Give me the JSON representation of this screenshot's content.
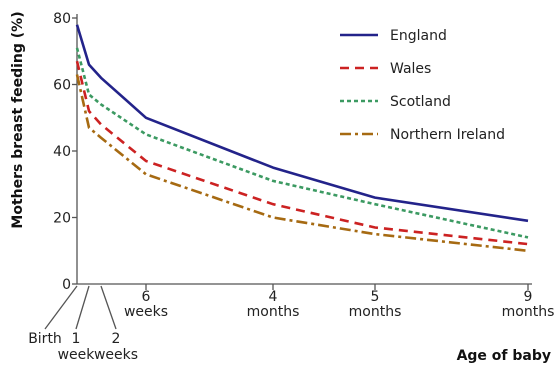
{
  "chart_data": {
    "type": "line",
    "title": "",
    "xlabel": "Age of baby",
    "ylabel": "Mothers breast feeding (%)",
    "ylim": [
      0,
      80
    ],
    "yticks": [
      "0",
      "20",
      "40",
      "60",
      "80"
    ],
    "x_ticks": [
      {
        "id": "birth",
        "lines": [
          "Birth"
        ]
      },
      {
        "id": "1w",
        "lines": [
          "1",
          "week"
        ]
      },
      {
        "id": "2w",
        "lines": [
          "2",
          "weeks"
        ]
      },
      {
        "id": "6w",
        "lines": [
          "6",
          "weeks"
        ]
      },
      {
        "id": "4m",
        "lines": [
          "4",
          "months"
        ]
      },
      {
        "id": "5m",
        "lines": [
          "5",
          "months"
        ]
      },
      {
        "id": "9m",
        "lines": [
          "9",
          "months"
        ]
      }
    ],
    "x_weeks": [
      0,
      1,
      2,
      6,
      17.4,
      21.7,
      39
    ],
    "legend_position": "top-right",
    "series": [
      {
        "name": "England",
        "color": "#23238a",
        "dash": "solid",
        "values": [
          78,
          66,
          62,
          50,
          35,
          26,
          19
        ]
      },
      {
        "name": "Wales",
        "color": "#cc2222",
        "dash": "dashed",
        "values": [
          67,
          52,
          48,
          37,
          24,
          17,
          12
        ]
      },
      {
        "name": "Scotland",
        "color": "#3c9a62",
        "dash": "dotted",
        "values": [
          71,
          57,
          54,
          45,
          31,
          24,
          14
        ]
      },
      {
        "name": "Northern Ireland",
        "color": "#a66a12",
        "dash": "dashdot",
        "values": [
          63,
          47,
          44,
          33,
          20,
          15,
          10
        ]
      }
    ]
  }
}
